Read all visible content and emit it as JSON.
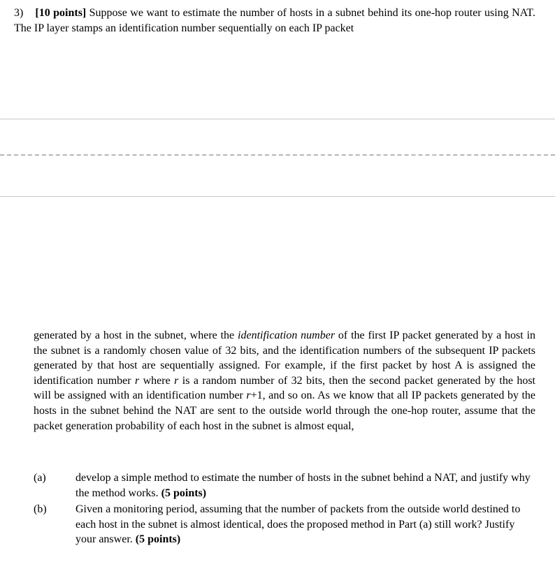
{
  "question": {
    "number": "3)",
    "points_label": "[10 points]",
    "intro_text": " Suppose we want to estimate the number of hosts in a subnet behind its one-hop router using NAT. The IP layer stamps an identification number sequentially on each IP packet"
  },
  "paragraph2": {
    "seg1": "generated by a host in the subnet, where the ",
    "italic1": "identification number",
    "seg2": " of the first IP packet generated by a host in the subnet is a randomly chosen value of 32 bits, and the identification numbers of the subsequent IP packets generated by that host are sequentially assigned. For example, if the first packet by host A is assigned the identification number ",
    "italic2": "r",
    "seg3": " where ",
    "italic3": "r",
    "seg4": " is a random number of 32 bits, then the second packet generated by the host will be assigned with an identification number ",
    "italic4": "r",
    "seg5": "+1, and so on. As we know that all IP packets generated by the hosts in the subnet behind the NAT are sent to the outside world through the one-hop router, assume that the packet generation probability of each host in the subnet is almost equal,"
  },
  "parts": {
    "a": {
      "label": "(a)",
      "text": "develop a simple method to estimate the number of hosts in the subnet behind a NAT, and justify why the method works. ",
      "points": "(5 points)"
    },
    "b": {
      "label": "(b)",
      "text": " Given a monitoring period, assuming that the number of packets from the outside world destined to each host in the subnet is almost identical, does the proposed method in Part (a) still work? Justify your answer. ",
      "points": "(5 points)"
    }
  },
  "style": {
    "font_family": "Times New Roman",
    "font_size_pt": 12,
    "text_color": "#000000",
    "background_color": "#ffffff",
    "divider_solid_color": "#c8c8c8",
    "divider_dashed_color": "#b6b6b6"
  }
}
